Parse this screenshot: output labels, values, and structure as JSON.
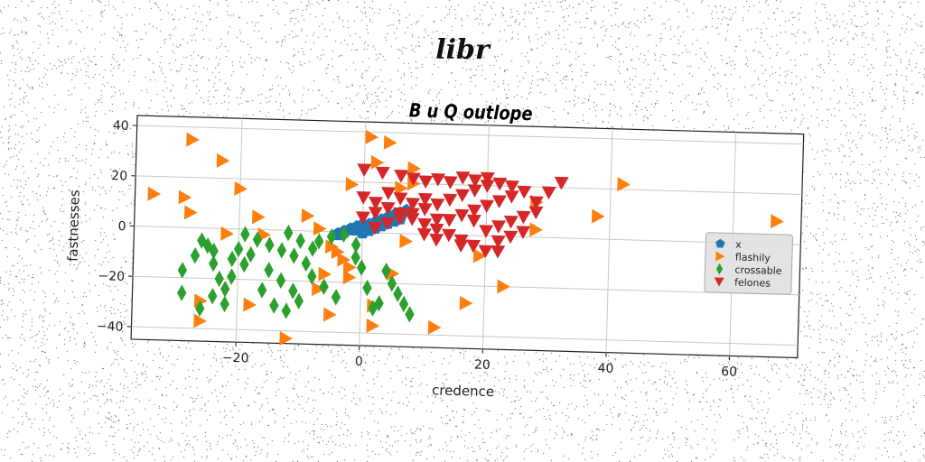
{
  "suptitle": "libr",
  "chart_data": {
    "type": "scatter",
    "title": "B u Q outlope",
    "xlabel": "credence",
    "ylabel": "fastnesses",
    "xlim": [
      -37,
      71
    ],
    "ylim": [
      -45,
      44
    ],
    "xticks": [
      -20,
      0,
      20,
      40,
      60
    ],
    "yticks": [
      -40,
      -20,
      0,
      20,
      40
    ],
    "xtick_labels": [
      "−20",
      "0",
      "20",
      "40",
      "60"
    ],
    "ytick_labels": [
      "−40",
      "−20",
      "0",
      "20",
      "40"
    ],
    "grid": true,
    "legend_position": "center-right",
    "series": [
      {
        "name": "x",
        "marker": "pentagon",
        "color": "#1f77b4",
        "points": [
          [
            -4,
            -1
          ],
          [
            -3,
            0
          ],
          [
            -2,
            1
          ],
          [
            -1,
            2
          ],
          [
            0,
            3
          ],
          [
            1,
            3
          ],
          [
            2,
            4
          ],
          [
            3,
            5
          ],
          [
            4,
            6
          ],
          [
            5,
            7
          ],
          [
            6,
            8
          ],
          [
            7,
            9
          ],
          [
            0,
            0
          ],
          [
            2,
            2
          ],
          [
            4,
            4
          ],
          [
            6,
            6
          ],
          [
            1,
            1
          ],
          [
            3,
            3
          ],
          [
            5,
            5
          ],
          [
            -1,
            1
          ]
        ]
      },
      {
        "name": "flashily",
        "marker": "triangle-right",
        "color": "#ff7f0e",
        "points": [
          [
            -28,
            35
          ],
          [
            -23,
            27
          ],
          [
            -20,
            16
          ],
          [
            -34,
            13
          ],
          [
            -29,
            12
          ],
          [
            -28,
            6
          ],
          [
            -17,
            5
          ],
          [
            -9,
            6
          ],
          [
            -7,
            1
          ],
          [
            -5,
            -6
          ],
          [
            -3,
            -11
          ],
          [
            -6,
            -17
          ],
          [
            -2,
            -18
          ],
          [
            -7,
            -23
          ],
          [
            -5,
            -33
          ],
          [
            2,
            -37
          ],
          [
            -26,
            -29
          ],
          [
            -26,
            -37
          ],
          [
            -18,
            -30
          ],
          [
            -12,
            -43
          ],
          [
            -16,
            -2
          ],
          [
            -22,
            -2
          ],
          [
            -2,
            19
          ],
          [
            1,
            38
          ],
          [
            4,
            36
          ],
          [
            2,
            28
          ],
          [
            8,
            26
          ],
          [
            6,
            18
          ],
          [
            8,
            20
          ],
          [
            19,
            -8
          ],
          [
            17,
            -27
          ],
          [
            12,
            -37
          ],
          [
            23,
            -20
          ],
          [
            28,
            3
          ],
          [
            28,
            14
          ],
          [
            38,
            9
          ],
          [
            42,
            22
          ],
          [
            67,
            9
          ],
          [
            7,
            -3
          ],
          [
            5,
            -16
          ],
          [
            2,
            -29
          ],
          [
            -2,
            -14
          ],
          [
            -4,
            -8
          ]
        ]
      },
      {
        "name": "crossable",
        "marker": "diamond",
        "color": "#2ca02c",
        "points": [
          [
            -26,
            -5
          ],
          [
            -25,
            -7
          ],
          [
            -24,
            -9
          ],
          [
            -27,
            -11
          ],
          [
            -24,
            -14
          ],
          [
            -29,
            -17
          ],
          [
            -21,
            -12
          ],
          [
            -19,
            -14
          ],
          [
            -21,
            -19
          ],
          [
            -22,
            -24
          ],
          [
            -24,
            -27
          ],
          [
            -22,
            -30
          ],
          [
            -26,
            -32
          ],
          [
            -29,
            -26
          ],
          [
            -19,
            -2
          ],
          [
            -17,
            -4
          ],
          [
            -15,
            -6
          ],
          [
            -13,
            -8
          ],
          [
            -11,
            -10
          ],
          [
            -12,
            -1
          ],
          [
            -10,
            -4
          ],
          [
            -8,
            -7
          ],
          [
            -15,
            -16
          ],
          [
            -13,
            -20
          ],
          [
            -11,
            -24
          ],
          [
            -9,
            -13
          ],
          [
            -8,
            -18
          ],
          [
            -10,
            -28
          ],
          [
            -12,
            -32
          ],
          [
            -14,
            -30
          ],
          [
            -6,
            -22
          ],
          [
            -4,
            -26
          ],
          [
            -3,
            -1
          ],
          [
            -1,
            -5
          ],
          [
            1,
            -22
          ],
          [
            2,
            -30
          ],
          [
            3,
            -28
          ],
          [
            4,
            -15
          ],
          [
            5,
            -20
          ],
          [
            6,
            -24
          ],
          [
            7,
            -28
          ],
          [
            8,
            -32
          ],
          [
            -1,
            -10
          ],
          [
            0,
            -14
          ],
          [
            -7,
            -4
          ],
          [
            -5,
            -2
          ],
          [
            -16,
            -24
          ],
          [
            -18,
            -10
          ],
          [
            -20,
            -8
          ],
          [
            -23,
            -20
          ]
        ]
      },
      {
        "name": "felones",
        "marker": "triangle-down",
        "color": "#d62728",
        "points": [
          [
            0,
            25
          ],
          [
            3,
            24
          ],
          [
            6,
            23
          ],
          [
            8,
            22
          ],
          [
            10,
            21
          ],
          [
            12,
            22
          ],
          [
            14,
            21
          ],
          [
            16,
            23
          ],
          [
            18,
            22
          ],
          [
            20,
            23
          ],
          [
            22,
            21
          ],
          [
            24,
            20
          ],
          [
            26,
            18
          ],
          [
            28,
            14
          ],
          [
            30,
            18
          ],
          [
            32,
            22
          ],
          [
            0,
            14
          ],
          [
            2,
            12
          ],
          [
            4,
            10
          ],
          [
            6,
            8
          ],
          [
            8,
            6
          ],
          [
            10,
            4
          ],
          [
            12,
            2
          ],
          [
            14,
            0
          ],
          [
            16,
            -2
          ],
          [
            18,
            -4
          ],
          [
            20,
            -6
          ],
          [
            2,
            2
          ],
          [
            4,
            4
          ],
          [
            6,
            6
          ],
          [
            8,
            8
          ],
          [
            10,
            10
          ],
          [
            12,
            12
          ],
          [
            14,
            14
          ],
          [
            16,
            16
          ],
          [
            18,
            18
          ],
          [
            20,
            20
          ],
          [
            22,
            4
          ],
          [
            24,
            6
          ],
          [
            26,
            8
          ],
          [
            28,
            10
          ],
          [
            0,
            6
          ],
          [
            2,
            8
          ],
          [
            4,
            16
          ],
          [
            6,
            14
          ],
          [
            8,
            12
          ],
          [
            10,
            0
          ],
          [
            12,
            -2
          ],
          [
            22,
            -2
          ],
          [
            24,
            0
          ],
          [
            26,
            2
          ],
          [
            20,
            12
          ],
          [
            22,
            14
          ],
          [
            24,
            16
          ],
          [
            18,
            10
          ],
          [
            16,
            8
          ],
          [
            14,
            6
          ],
          [
            20,
            2
          ],
          [
            12,
            6
          ],
          [
            10,
            14
          ],
          [
            18,
            6
          ],
          [
            16,
            -4
          ],
          [
            22,
            -6
          ]
        ]
      }
    ]
  }
}
